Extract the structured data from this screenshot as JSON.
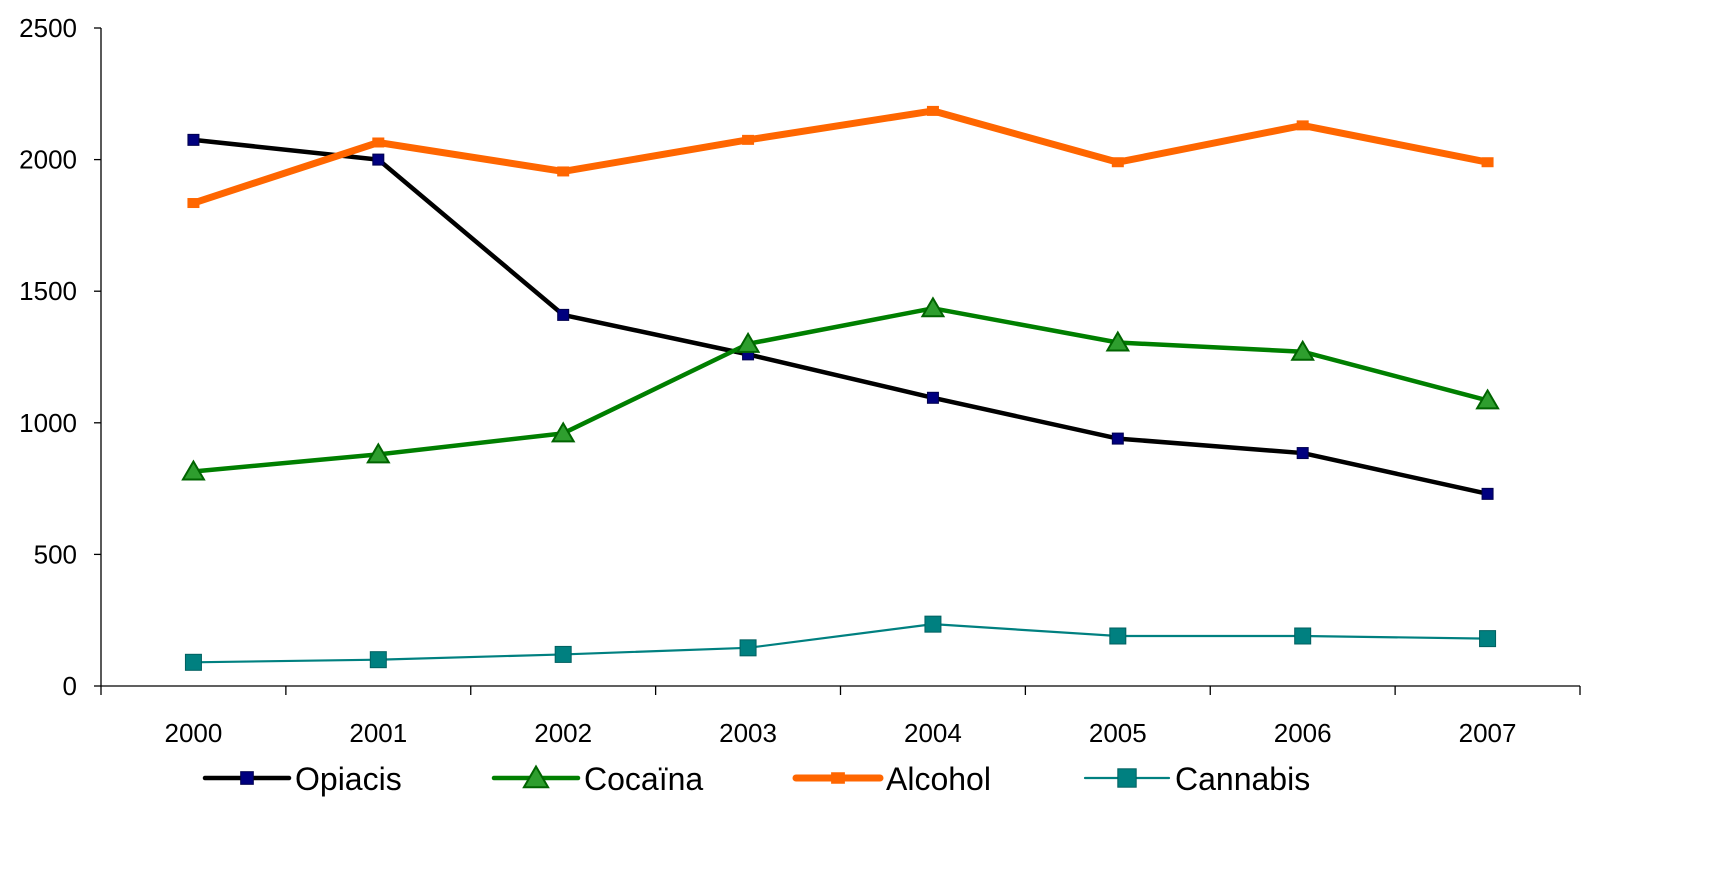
{
  "chart_data": {
    "type": "line",
    "title": "",
    "xlabel": "",
    "ylabel": "",
    "categories": [
      "2000",
      "2001",
      "2002",
      "2003",
      "2004",
      "2005",
      "2006",
      "2007"
    ],
    "ylim": [
      0,
      2500
    ],
    "yticks": [
      "0",
      "500",
      "1000",
      "1500",
      "2000",
      "2500"
    ],
    "grid": false,
    "legend_position": "bottom",
    "series": [
      {
        "name": "Opiacis",
        "color": "#000000",
        "marker": "square",
        "marker_color": "#00007f",
        "values": [
          2075,
          2000,
          1410,
          1260,
          1095,
          940,
          885,
          730
        ]
      },
      {
        "name": "Cocaïna",
        "color": "#007f00",
        "marker": "triangle",
        "marker_color": "#2e9e2e",
        "values": [
          815,
          880,
          960,
          1300,
          1435,
          1305,
          1270,
          1085
        ]
      },
      {
        "name": "Alcohol",
        "color": "#ff6600",
        "marker": "dash",
        "marker_color": "#ff6600",
        "values": [
          1835,
          2065,
          1955,
          2075,
          2185,
          1990,
          2130,
          1990
        ]
      },
      {
        "name": "Cannabis",
        "color": "#008080",
        "marker": "square",
        "marker_color": "#008080",
        "values": [
          90,
          100,
          120,
          145,
          235,
          190,
          190,
          180
        ]
      }
    ]
  }
}
